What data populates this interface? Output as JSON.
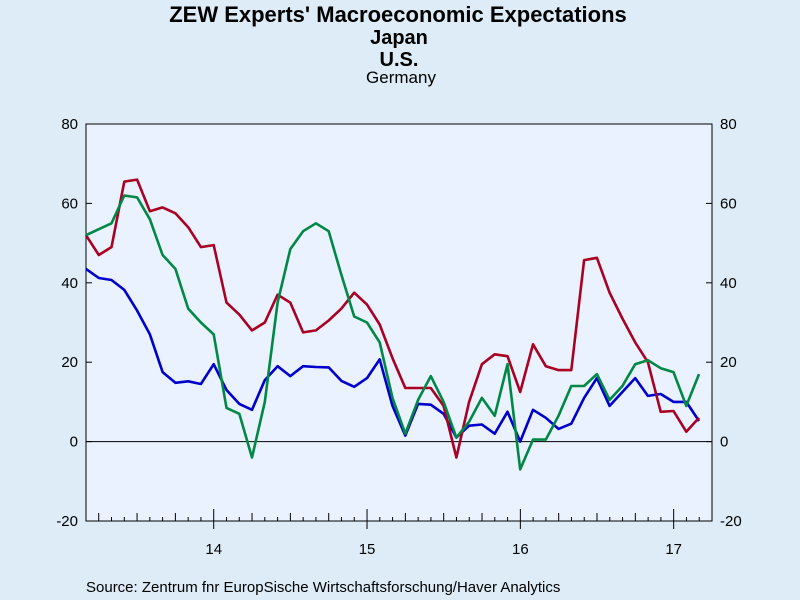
{
  "chart_data": {
    "type": "line",
    "title": "ZEW Experts' Macroeconomic Expectations",
    "source": "Source:  Zentrum fnr EuropSische Wirtschaftsforschung/Haver Analytics",
    "ylim": [
      -20,
      80
    ],
    "yticks": [
      -20,
      0,
      20,
      40,
      60,
      80
    ],
    "xlim": [
      2013.167,
      2017.25
    ],
    "xticks": [
      {
        "label": "14",
        "x": 2014.0
      },
      {
        "label": "15",
        "x": 2015.0
      },
      {
        "label": "16",
        "x": 2016.0
      },
      {
        "label": "17",
        "x": 2017.0
      }
    ],
    "grid": false,
    "zero_line": true,
    "dual_axis": true,
    "x_start": 2013.167,
    "x_step": 0.0833,
    "series": [
      {
        "name": "Japan",
        "color": "#0000cc",
        "values": [
          43.5,
          41.2,
          40.7,
          38.2,
          33.0,
          27.0,
          17.5,
          14.8,
          15.2,
          14.5,
          19.5,
          13.0,
          9.5,
          8.0,
          15.5,
          19.0,
          16.5,
          19.0,
          18.8,
          18.7,
          15.3,
          13.8,
          16.0,
          20.7,
          9.0,
          1.5,
          9.5,
          9.3,
          7.0,
          1.0,
          4.0,
          4.3,
          2.0,
          7.5,
          0.0,
          8.0,
          6.0,
          3.2,
          4.5,
          11.0,
          16.0,
          9.0,
          12.5,
          16.0,
          11.5,
          12.0,
          10.0,
          10.0,
          5.2
        ]
      },
      {
        "name": "U.S.",
        "color": "#aa0022",
        "values": [
          52.0,
          47.0,
          49.0,
          65.5,
          66.0,
          58.0,
          59.0,
          57.5,
          54.0,
          49.0,
          49.5,
          35.0,
          32.0,
          28.0,
          30.0,
          37.0,
          35.0,
          27.5,
          28.0,
          30.5,
          33.5,
          37.5,
          34.5,
          29.5,
          21.0,
          13.5,
          13.5,
          13.5,
          9.0,
          -4.0,
          10.0,
          19.5,
          22.0,
          21.5,
          12.5,
          24.5,
          19.0,
          18.0,
          18.0,
          45.7,
          46.3,
          37.5,
          31.0,
          25.0,
          20.0,
          7.5,
          7.7,
          2.5,
          6.0
        ]
      },
      {
        "name": "Germany",
        "color": "#008844",
        "values": [
          52.0,
          53.5,
          55.0,
          62.0,
          61.5,
          56.0,
          47.0,
          43.5,
          33.5,
          30.0,
          27.0,
          8.5,
          7.0,
          -4.0,
          10.0,
          35.0,
          48.5,
          53.0,
          55.0,
          53.0,
          42.0,
          31.5,
          30.0,
          25.0,
          11.0,
          2.0,
          10.5,
          16.5,
          10.0,
          1.0,
          5.0,
          11.0,
          6.5,
          19.5,
          -7.0,
          0.5,
          0.5,
          6.5,
          14.0,
          14.0,
          17.0,
          10.5,
          14.0,
          19.5,
          20.5,
          18.5,
          17.5,
          9.0,
          17.0
        ]
      }
    ]
  }
}
